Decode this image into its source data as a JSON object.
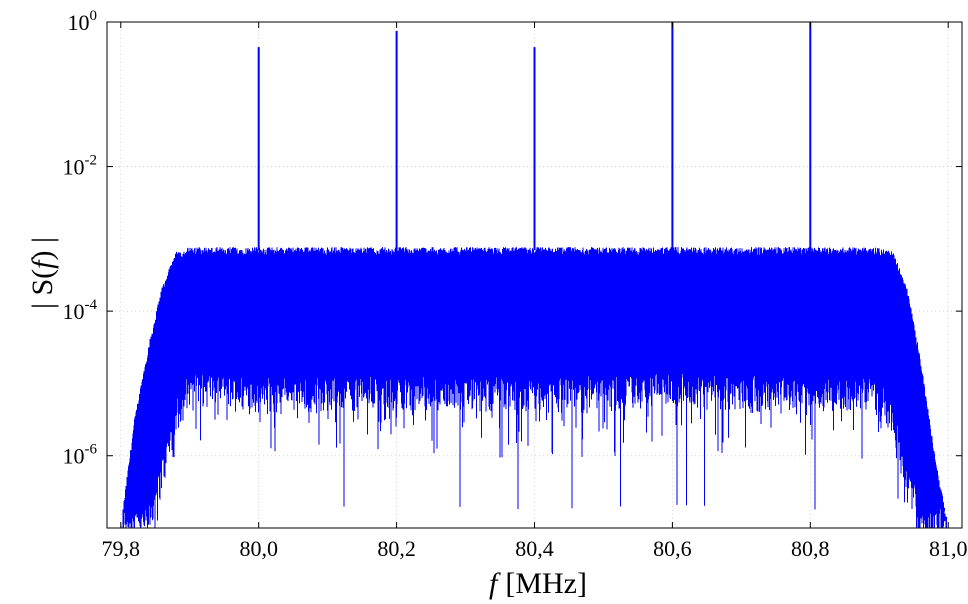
{
  "chart_data": {
    "type": "line",
    "title": "",
    "xlabel": {
      "var": "f",
      "unit": "[MHz]"
    },
    "ylabel": {
      "open": "| S(",
      "var": "f",
      "close": ") |"
    },
    "y_scale": "log",
    "xlim": [
      79.78,
      81.02
    ],
    "ylim": [
      1e-07,
      1
    ],
    "grid": true,
    "x_ticks": [
      {
        "value": 79.8,
        "label": "79,8"
      },
      {
        "value": 80.0,
        "label": "80,0"
      },
      {
        "value": 80.2,
        "label": "80,2"
      },
      {
        "value": 80.4,
        "label": "80,4"
      },
      {
        "value": 80.6,
        "label": "80,6"
      },
      {
        "value": 80.8,
        "label": "80,8"
      },
      {
        "value": 81.0,
        "label": "81,0"
      }
    ],
    "y_ticks": [
      {
        "value": 1,
        "base": "10",
        "exp": "0"
      },
      {
        "value": 0.01,
        "base": "10",
        "exp": "-2"
      },
      {
        "value": 0.0001,
        "base": "10",
        "exp": "-4"
      },
      {
        "value": 1e-06,
        "base": "10",
        "exp": "-6"
      }
    ],
    "series": [
      {
        "color": "#0000ff",
        "noise_envelope": {
          "x": [
            79.78,
            79.8,
            79.82,
            79.84,
            79.86,
            79.88,
            79.9,
            80.0,
            80.2,
            80.4,
            80.6,
            80.8,
            80.9,
            80.92,
            80.94,
            80.96,
            80.98,
            81.0,
            81.02
          ],
          "upper": [
            1e-07,
            1e-07,
            3e-06,
            3e-05,
            0.0002,
            0.0006,
            0.0007,
            0.0007,
            0.0007,
            0.0007,
            0.0007,
            0.0007,
            0.0007,
            0.0006,
            0.0002,
            2e-05,
            1e-06,
            1e-07,
            1e-07
          ],
          "lower": [
            1e-07,
            1e-07,
            1e-07,
            1e-07,
            5e-07,
            3e-06,
            8e-06,
            6e-06,
            7e-06,
            6e-06,
            7e-06,
            6e-06,
            6e-06,
            3e-06,
            5e-07,
            1e-07,
            1e-07,
            1e-07,
            1e-07
          ]
        },
        "spikes": [
          {
            "x": 80.0,
            "y": 0.45
          },
          {
            "x": 80.2,
            "y": 0.75
          },
          {
            "x": 80.4,
            "y": 0.45
          },
          {
            "x": 80.6,
            "y": 1.0
          },
          {
            "x": 80.8,
            "y": 1.0
          }
        ]
      }
    ]
  }
}
